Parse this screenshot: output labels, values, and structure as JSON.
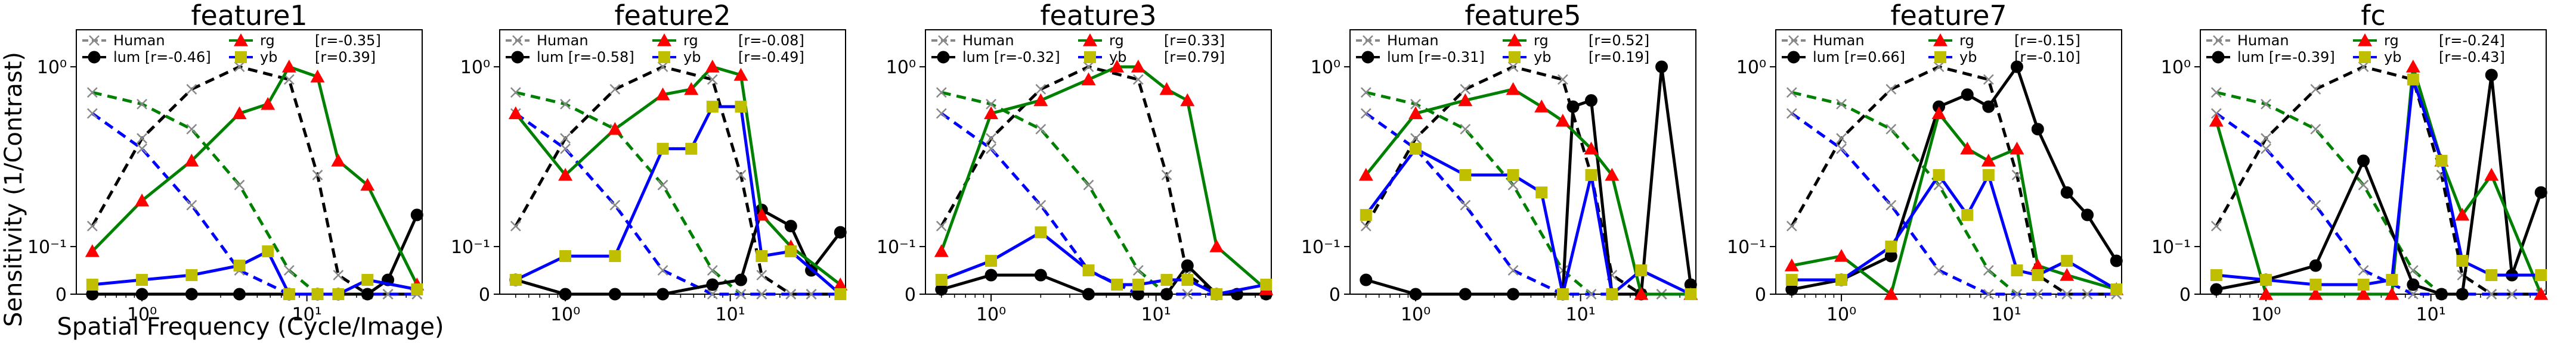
{
  "figure": {
    "ylabel": "Sensitivity (1/Contrast)",
    "xlabel": "Spatial Frequency (Cycle/Image)"
  },
  "chart_data": [
    {
      "type": "line",
      "title": "feature1",
      "xscale": "log",
      "yscale": "symlog",
      "xlim": [
        0.4,
        50
      ],
      "ylim": [
        0,
        2.2
      ],
      "yticks": [
        "0",
        "10⁻¹",
        "10⁰"
      ],
      "xticks": [
        "10⁰",
        "10¹"
      ],
      "legend": {
        "placement": "top",
        "human_label": "Human",
        "lum_label": "lum [r=-0.46]",
        "rg_label": "rg",
        "yb_label": "yb",
        "rg_r": "[r=-0.35]",
        "yb_r": "[r=0.39]"
      },
      "series": [
        {
          "name": "lum",
          "x": [
            0.5,
            1.0,
            2.0,
            3.9,
            7.8,
            11.6,
            15.5,
            23.3,
            31.0,
            46.5
          ],
          "y": [
            0.0,
            0.0,
            0.0,
            0.0,
            0.0,
            0.0,
            0.0,
            0.0,
            0.03,
            0.15
          ]
        },
        {
          "name": "rg",
          "x": [
            0.5,
            1.0,
            2.0,
            3.9,
            5.8,
            7.8,
            11.6,
            15.5,
            23.3,
            46.5
          ],
          "y": [
            0.09,
            0.18,
            0.3,
            0.55,
            0.62,
            1.0,
            0.88,
            0.3,
            0.22,
            0.02
          ]
        },
        {
          "name": "yb",
          "x": [
            0.5,
            1.0,
            2.0,
            3.9,
            5.8,
            7.8,
            11.6,
            15.5,
            23.3,
            46.5
          ],
          "y": [
            0.02,
            0.03,
            0.04,
            0.06,
            0.09,
            0.0,
            0.0,
            0.0,
            0.03,
            0.01
          ]
        }
      ]
    },
    {
      "type": "line",
      "title": "feature2",
      "xscale": "log",
      "yscale": "symlog",
      "xlim": [
        0.4,
        50
      ],
      "ylim": [
        0,
        2.2
      ],
      "yticks": [
        "0",
        "10⁻¹",
        "10⁰"
      ],
      "xticks": [
        "10⁰",
        "10¹"
      ],
      "legend": {
        "placement": "top",
        "human_label": "Human",
        "lum_label": "lum [r=-0.58]",
        "rg_label": "rg",
        "yb_label": "yb",
        "rg_r": "[r=-0.08]",
        "yb_r": "[r=-0.49]"
      },
      "series": [
        {
          "name": "lum",
          "x": [
            0.5,
            1.0,
            2.0,
            3.9,
            7.8,
            11.6,
            15.5,
            23.3,
            31.0,
            46.5
          ],
          "y": [
            0.03,
            0.0,
            0.0,
            0.0,
            0.02,
            0.03,
            0.16,
            0.13,
            0.05,
            0.12
          ]
        },
        {
          "name": "rg",
          "x": [
            0.5,
            1.0,
            2.0,
            3.9,
            5.8,
            7.8,
            11.6,
            15.5,
            23.3,
            46.5
          ],
          "y": [
            0.55,
            0.25,
            0.45,
            0.7,
            0.75,
            1.0,
            0.9,
            0.15,
            0.1,
            0.02
          ]
        },
        {
          "name": "yb",
          "x": [
            0.5,
            1.0,
            2.0,
            3.9,
            5.8,
            7.8,
            11.6,
            15.5,
            23.3,
            46.5
          ],
          "y": [
            0.03,
            0.08,
            0.08,
            0.35,
            0.35,
            0.6,
            0.6,
            0.08,
            0.09,
            0.0
          ]
        }
      ]
    },
    {
      "type": "line",
      "title": "feature3",
      "xscale": "log",
      "yscale": "symlog",
      "xlim": [
        0.4,
        50
      ],
      "ylim": [
        0,
        2.2
      ],
      "yticks": [
        "0",
        "10⁻¹",
        "10⁰"
      ],
      "xticks": [
        "10⁰",
        "10¹"
      ],
      "legend": {
        "placement": "top",
        "human_label": "Human",
        "lum_label": "lum [r=-0.32]",
        "rg_label": "rg",
        "yb_label": "yb",
        "rg_r": "[r=0.33]",
        "yb_r": "[r=0.79]"
      },
      "series": [
        {
          "name": "lum",
          "x": [
            0.5,
            1.0,
            2.0,
            3.9,
            7.8,
            11.6,
            15.5,
            23.3,
            31.0,
            46.5
          ],
          "y": [
            0.01,
            0.04,
            0.04,
            0.0,
            0.0,
            0.0,
            0.06,
            0.0,
            0.0,
            0.0
          ]
        },
        {
          "name": "rg",
          "x": [
            0.5,
            1.0,
            2.0,
            3.9,
            5.8,
            7.8,
            11.6,
            15.5,
            23.3,
            46.5
          ],
          "y": [
            0.09,
            0.55,
            0.65,
            0.85,
            1.0,
            1.0,
            0.75,
            0.65,
            0.1,
            0.01
          ]
        },
        {
          "name": "yb",
          "x": [
            0.5,
            1.0,
            2.0,
            3.9,
            5.8,
            7.8,
            11.6,
            15.5,
            23.3,
            46.5
          ],
          "y": [
            0.03,
            0.07,
            0.12,
            0.05,
            0.02,
            0.02,
            0.03,
            0.03,
            0.0,
            0.02
          ]
        }
      ]
    },
    {
      "type": "line",
      "title": "feature5",
      "xscale": "log",
      "yscale": "symlog",
      "xlim": [
        0.4,
        50
      ],
      "ylim": [
        0,
        2.2
      ],
      "yticks": [
        "0",
        "10⁻¹",
        "10⁰"
      ],
      "xticks": [
        "10⁰",
        "10¹"
      ],
      "legend": {
        "placement": "top",
        "human_label": "Human",
        "lum_label": "lum [r=-0.31]",
        "rg_label": "rg",
        "yb_label": "yb",
        "rg_r": "[r=0.52]",
        "yb_r": "[r=0.19]"
      },
      "series": [
        {
          "name": "lum",
          "x": [
            0.5,
            1.0,
            2.0,
            3.9,
            7.8,
            9.0,
            11.6,
            15.5,
            23.3,
            31.0,
            46.5
          ],
          "y": [
            0.03,
            0.0,
            0.0,
            0.0,
            0.0,
            0.6,
            0.65,
            0.0,
            0.0,
            1.0,
            0.02
          ]
        },
        {
          "name": "rg",
          "x": [
            0.5,
            1.0,
            2.0,
            3.9,
            5.8,
            7.8,
            11.6,
            15.5,
            23.3,
            46.5
          ],
          "y": [
            0.25,
            0.55,
            0.65,
            0.75,
            0.6,
            0.5,
            0.35,
            0.25,
            0.0,
            0.0
          ]
        },
        {
          "name": "yb",
          "x": [
            0.5,
            1.0,
            2.0,
            3.9,
            5.8,
            7.8,
            11.6,
            15.5,
            23.3,
            46.5
          ],
          "y": [
            0.15,
            0.35,
            0.25,
            0.25,
            0.2,
            0.0,
            0.25,
            0.0,
            0.05,
            0.0
          ]
        }
      ]
    },
    {
      "type": "line",
      "title": "feature7",
      "xscale": "log",
      "yscale": "symlog",
      "xlim": [
        0.4,
        50
      ],
      "ylim": [
        0,
        2.2
      ],
      "yticks": [
        "0",
        "10⁻¹",
        "10⁰"
      ],
      "xticks": [
        "10⁰",
        "10¹"
      ],
      "legend": {
        "placement": "top",
        "human_label": "Human",
        "lum_label": "lum [r=0.66]",
        "rg_label": "rg",
        "yb_label": "yb",
        "rg_r": "[r=-0.15]",
        "yb_r": "[r=-0.10]"
      },
      "series": [
        {
          "name": "lum",
          "x": [
            0.5,
            1.0,
            2.0,
            3.9,
            5.8,
            7.8,
            11.6,
            15.5,
            23.3,
            31.0,
            46.5
          ],
          "y": [
            0.01,
            0.03,
            0.08,
            0.6,
            0.7,
            0.6,
            1.0,
            0.45,
            0.2,
            0.15,
            0.07
          ]
        },
        {
          "name": "rg",
          "x": [
            0.5,
            1.0,
            2.0,
            3.9,
            5.8,
            7.8,
            11.6,
            15.5,
            23.3,
            46.5
          ],
          "y": [
            0.06,
            0.08,
            0.0,
            0.55,
            0.35,
            0.3,
            0.35,
            0.06,
            0.04,
            0.01
          ]
        },
        {
          "name": "yb",
          "x": [
            0.5,
            1.0,
            2.0,
            3.9,
            5.8,
            7.8,
            11.6,
            15.5,
            23.3,
            46.5
          ],
          "y": [
            0.03,
            0.03,
            0.1,
            0.25,
            0.15,
            0.25,
            0.05,
            0.04,
            0.07,
            0.01
          ]
        }
      ]
    },
    {
      "type": "line",
      "title": "fc",
      "xscale": "log",
      "yscale": "symlog",
      "xlim": [
        0.4,
        50
      ],
      "ylim": [
        0,
        2.2
      ],
      "yticks": [
        "0",
        "10⁻¹",
        "10⁰"
      ],
      "xticks": [
        "10⁰",
        "10¹"
      ],
      "legend": {
        "placement": "top",
        "human_label": "Human",
        "lum_label": "lum [r=-0.39]",
        "rg_label": "rg",
        "yb_label": "yb",
        "rg_r": "[r=-0.24]",
        "yb_r": "[r=-0.43]"
      },
      "series": [
        {
          "name": "lum",
          "x": [
            0.5,
            1.0,
            2.0,
            3.9,
            7.8,
            11.6,
            15.5,
            23.3,
            31.0,
            46.5
          ],
          "y": [
            0.01,
            0.03,
            0.06,
            0.3,
            0.02,
            0.0,
            0.0,
            0.9,
            0.04,
            0.2
          ]
        },
        {
          "name": "rg",
          "x": [
            0.5,
            1.0,
            2.0,
            3.9,
            5.8,
            7.8,
            11.6,
            15.5,
            23.3,
            46.5
          ],
          "y": [
            0.5,
            0.0,
            0.0,
            0.0,
            0.0,
            1.0,
            0.3,
            0.15,
            0.25,
            0.0
          ]
        },
        {
          "name": "yb",
          "x": [
            0.5,
            1.0,
            2.0,
            3.9,
            5.8,
            7.8,
            11.6,
            15.5,
            23.3,
            46.5
          ],
          "y": [
            0.04,
            0.03,
            0.02,
            0.02,
            0.03,
            0.85,
            0.3,
            0.07,
            0.04,
            0.04
          ]
        }
      ]
    }
  ],
  "human_reference": {
    "x": [
      0.5,
      1.0,
      2.0,
      3.9,
      7.8,
      11.6,
      15.5,
      23.3,
      31.0,
      46.5
    ],
    "lum": [
      0.13,
      0.4,
      0.75,
      1.0,
      0.85,
      0.25,
      0.04,
      0.0,
      0.0,
      0.0
    ],
    "rg": [
      0.72,
      0.62,
      0.45,
      0.22,
      0.05,
      0.0,
      0.0,
      0.0,
      0.0,
      0.0
    ],
    "yb": [
      0.55,
      0.35,
      0.17,
      0.05,
      0.0,
      0.0,
      0.0,
      0.0,
      0.0,
      0.0
    ]
  },
  "colors": {
    "lum": "#000000",
    "rg": "#008000",
    "yb": "#0000ff",
    "rg_marker": "#ff0000",
    "yb_marker": "#bfbf00",
    "human_marker": "#888888",
    "axes": "#000000"
  }
}
